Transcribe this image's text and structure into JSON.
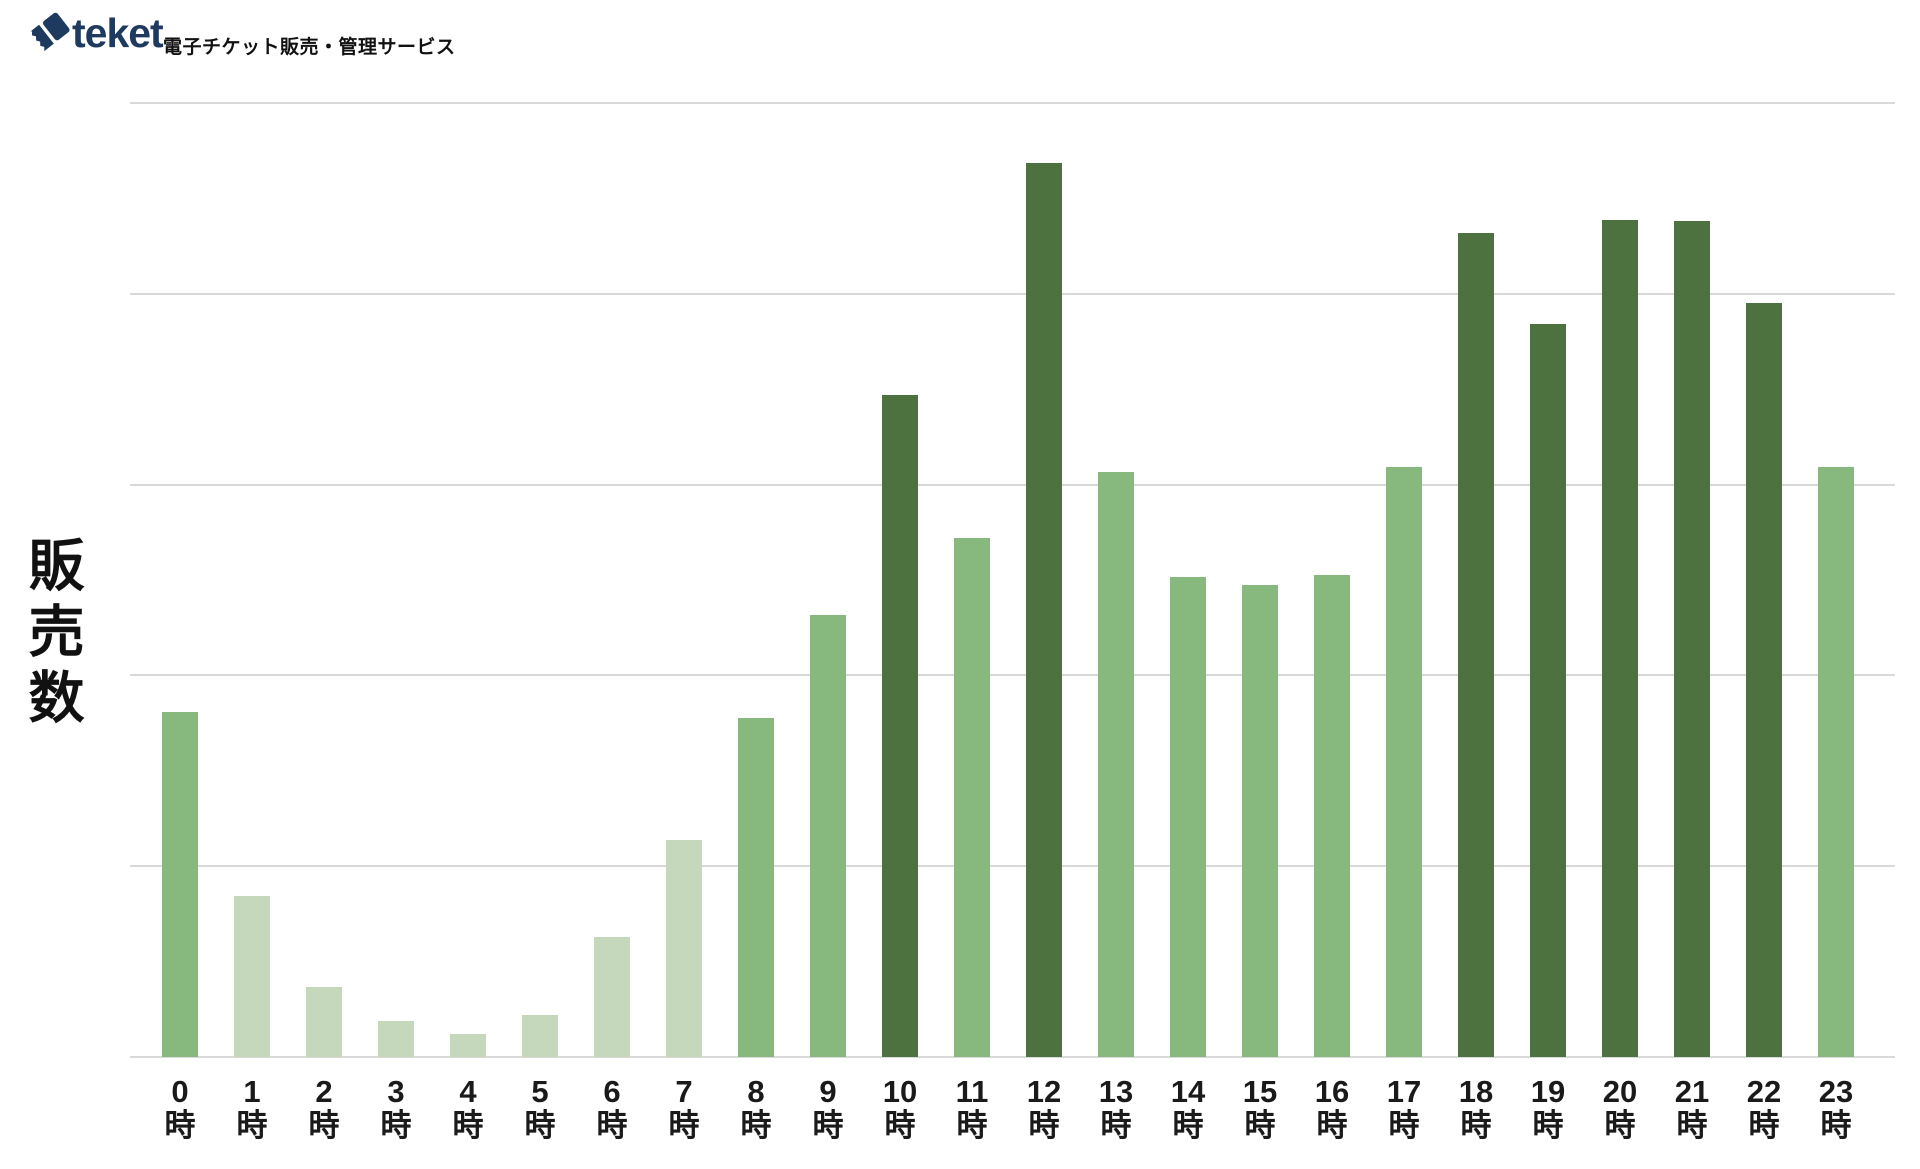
{
  "header": {
    "logo_text": "teket",
    "tagline": "電子チケット販売・管理サービス"
  },
  "chart_data": {
    "type": "bar",
    "title": "",
    "xlabel": "",
    "ylabel": "販売数",
    "x_unit_suffix": "時",
    "hours": [
      0,
      1,
      2,
      3,
      4,
      5,
      6,
      7,
      8,
      9,
      10,
      11,
      12,
      13,
      14,
      15,
      16,
      17,
      18,
      19,
      20,
      21,
      22,
      23
    ],
    "categories": [
      "0時",
      "1時",
      "2時",
      "3時",
      "4時",
      "5時",
      "6時",
      "7時",
      "8時",
      "9時",
      "10時",
      "11時",
      "12時",
      "13時",
      "14時",
      "15時",
      "16時",
      "17時",
      "18時",
      "19時",
      "20時",
      "21時",
      "22時",
      "23時"
    ],
    "values_pct": [
      36.2,
      16.9,
      7.3,
      3.8,
      2.4,
      4.4,
      12.6,
      22.7,
      35.5,
      46.3,
      69.4,
      54.4,
      93.7,
      61.3,
      50.3,
      49.5,
      50.5,
      61.8,
      86.4,
      76.8,
      87.7,
      87.6,
      79.0,
      61.8
    ],
    "value_note": "y-axis has no numeric labels; values estimated as percent of axis max (top gridline = 100)",
    "ylim": [
      0,
      100
    ],
    "gridlines_pct": [
      0,
      20,
      40,
      60,
      80,
      100
    ],
    "grid": true,
    "legend": false,
    "bar_tiers": [
      "medium",
      "light",
      "light",
      "light",
      "light",
      "light",
      "light",
      "light",
      "medium",
      "medium",
      "dark",
      "medium",
      "dark",
      "medium",
      "medium",
      "medium",
      "medium",
      "medium",
      "dark",
      "dark",
      "dark",
      "dark",
      "dark",
      "medium"
    ],
    "colors": {
      "light_green": "#c5d8bc",
      "medium_green": "#87b87d",
      "dark_green": "#4e7140",
      "gridline": "#d9d9d9",
      "axis_text": "#1a1a1a",
      "logo_navy": "#1e3a5e"
    }
  }
}
